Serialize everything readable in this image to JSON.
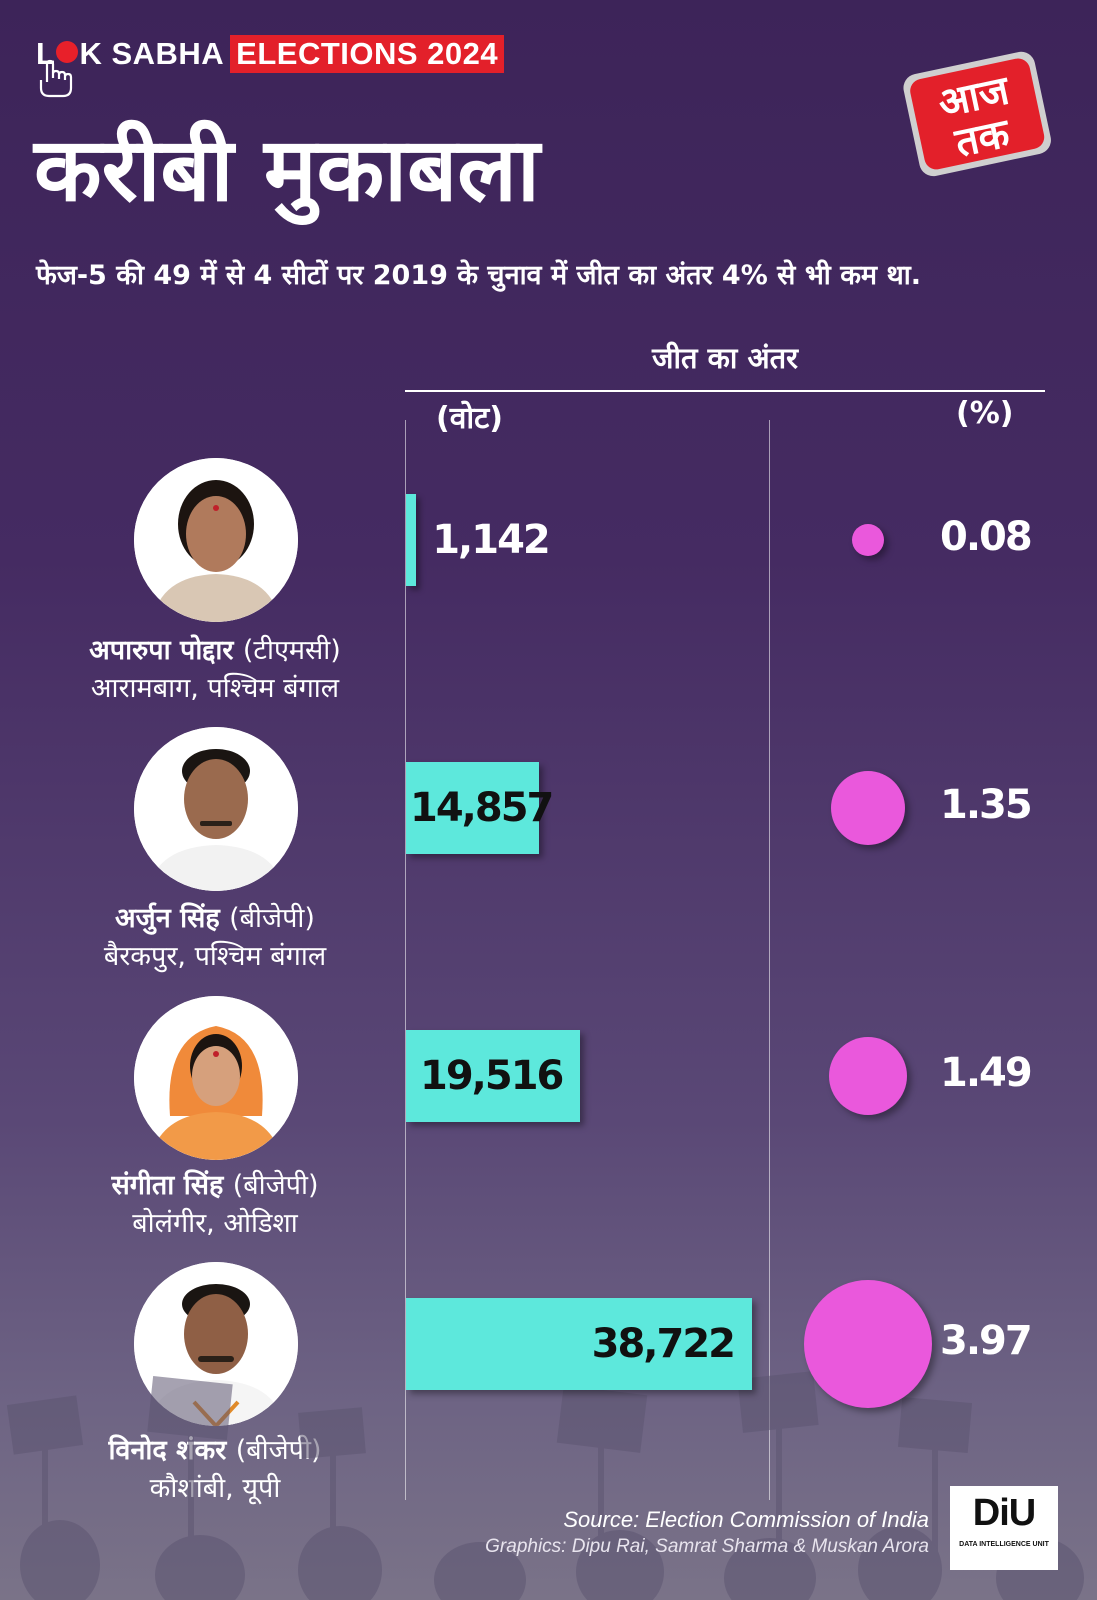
{
  "header": {
    "brand_lok": "L",
    "brand_k_sabha": "K SABHA",
    "brand_elections": "ELECTIONS 2024",
    "title": "करीबी मुकाबला",
    "subtitle": "फेज-5 की 49 में से 4 सीटों पर 2019 के चुनाव में जीत का अंतर 4% से भी कम था.",
    "logo_line1": "आज",
    "logo_line2": "तक"
  },
  "colors": {
    "bar": "#5de8dc",
    "bubble": "#ea58dc",
    "accent_red": "#e3202a",
    "background": "#452b62"
  },
  "chart_data": {
    "type": "bar",
    "title": "करीबी मुकाबला",
    "margin_header": "जीत का अंतर",
    "votes_header": "(वोट)",
    "percent_header": "(%)",
    "categories": [
      "अपारुपा पोद्दार",
      "अर्जुन सिंह",
      "संगीता सिंह",
      "विनोद शंकर"
    ],
    "series": [
      {
        "name": "(वोट)",
        "values": [
          1142,
          14857,
          19516,
          38722
        ]
      },
      {
        "name": "(%)",
        "values": [
          0.08,
          1.35,
          1.49,
          3.97
        ]
      }
    ],
    "vote_labels": [
      "1,142",
      "14,857",
      "19,516",
      "38,722"
    ],
    "percent_labels": [
      "0.08",
      "1.35",
      "1.49",
      "3.97"
    ],
    "candidates": [
      {
        "name": "अपारुपा पोद्दार",
        "party": "(टीएमसी)",
        "seat": "आरामबाग, पश्चिम बंगाल",
        "photo": "woman-portrait"
      },
      {
        "name": "अर्जुन सिंह",
        "party": "(बीजेपी)",
        "seat": "बैरकपुर, पश्चिम बंगाल",
        "photo": "man-portrait"
      },
      {
        "name": "संगीता सिंह",
        "party": "(बीजेपी)",
        "seat": "बोलंगीर, ओडिशा",
        "photo": "woman-portrait"
      },
      {
        "name": "विनोद शंकर",
        "party": "(बीजेपी)",
        "seat": "कौशांबी, यूपी",
        "photo": "man-portrait"
      }
    ]
  },
  "footer": {
    "source": "Source: Election Commission of India",
    "credits": "Graphics: Dipu Rai, Samrat Sharma & Muskan Arora",
    "diu_logo": "DiU",
    "diu_tagline": "DATA INTELLIGENCE UNIT"
  }
}
